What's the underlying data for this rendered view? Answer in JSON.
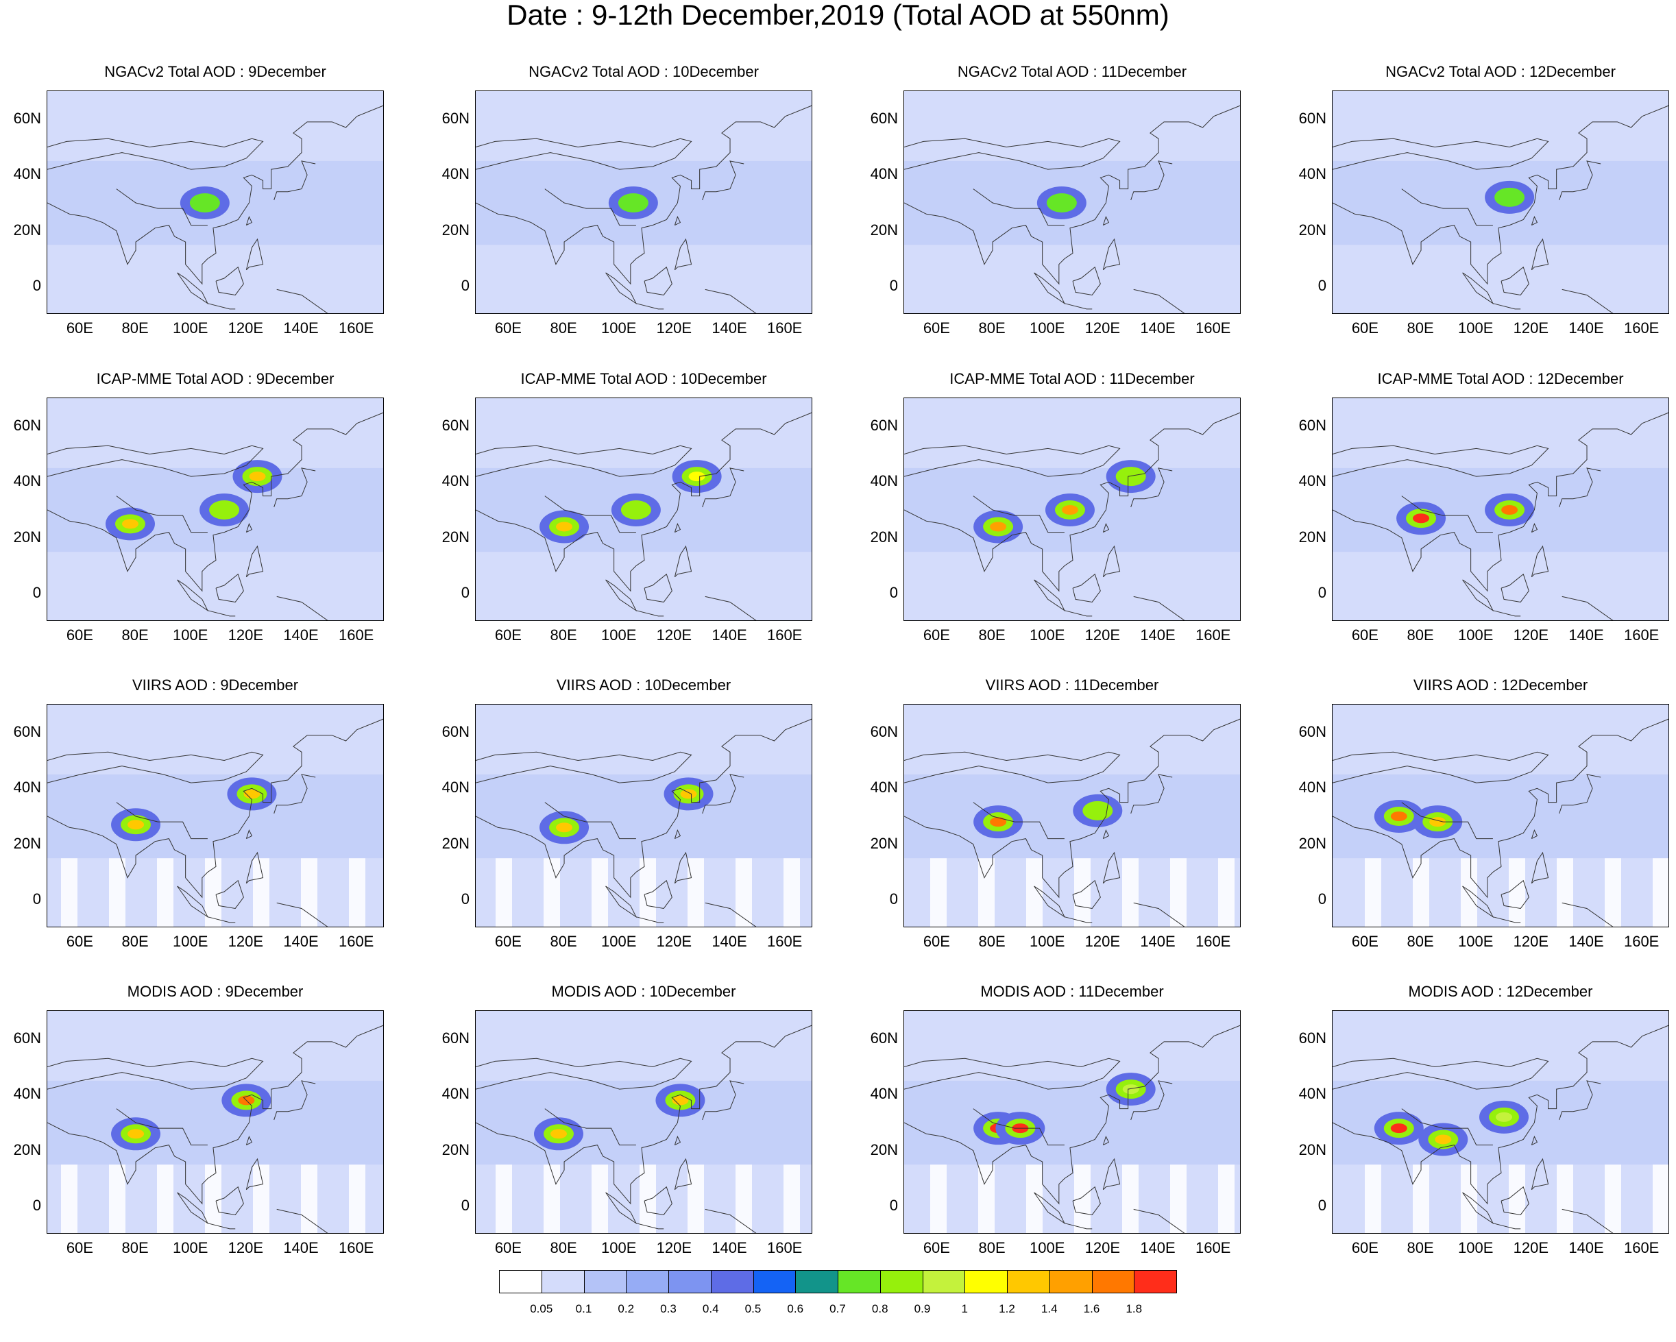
{
  "title": "Date : 9-12th December,2019 (Total AOD at 550nm)",
  "lat_ticks": [
    "60N",
    "40N",
    "20N",
    "0"
  ],
  "lon_ticks": [
    "60E",
    "80E",
    "100E",
    "120E",
    "140E",
    "160E"
  ],
  "rows": [
    {
      "product": "NGACv2 Total AOD",
      "panels": [
        "NGACv2 Total AOD : 9December",
        "NGACv2 Total AOD : 10December",
        "NGACv2 Total AOD : 11December",
        "NGACv2 Total AOD : 12December"
      ]
    },
    {
      "product": "ICAP-MME Total AOD",
      "panels": [
        "ICAP-MME Total AOD : 9December",
        "ICAP-MME Total AOD : 10December",
        "ICAP-MME Total AOD : 11December",
        "ICAP-MME Total AOD : 12December"
      ]
    },
    {
      "product": "VIIRS AOD",
      "panels": [
        "VIIRS AOD : 9December",
        "VIIRS AOD : 10December",
        "VIIRS AOD : 11December",
        "VIIRS AOD : 12December"
      ]
    },
    {
      "product": "MODIS AOD",
      "panels": [
        "MODIS AOD : 9December",
        "MODIS AOD : 10December",
        "MODIS AOD : 11December",
        "MODIS AOD : 12December"
      ]
    }
  ],
  "chart_data": {
    "type": "heatmap",
    "title": "Date : 9-12th December,2019 (Total AOD at 550nm)",
    "xlabel": "",
    "ylabel": "",
    "xlim": [
      48,
      170
    ],
    "ylim": [
      -10,
      70
    ],
    "x_ticks": [
      60,
      80,
      100,
      120,
      140,
      160
    ],
    "y_ticks": [
      0,
      20,
      40,
      60
    ],
    "grid": false,
    "dates": [
      "9December",
      "10December",
      "11December",
      "12December"
    ],
    "products": [
      "NGACv2 Total AOD",
      "ICAP-MME Total AOD",
      "VIIRS AOD",
      "MODIS AOD"
    ],
    "colorbar": {
      "levels": [
        "0.05",
        "0.1",
        "0.2",
        "0.3",
        "0.4",
        "0.5",
        "0.6",
        "0.7",
        "0.8",
        "0.9",
        "1",
        "1.2",
        "1.4",
        "1.6",
        "1.8"
      ],
      "colors": [
        "#ffffff",
        "#d4dcfb",
        "#b4c3f7",
        "#96acf5",
        "#7d94f1",
        "#5e6ce6",
        "#1463f5",
        "#12948a",
        "#66e626",
        "#96f00c",
        "#c4f23c",
        "#ffff00",
        "#ffc800",
        "#ffa000",
        "#ff7800",
        "#ff2d1a"
      ]
    },
    "hotspots": [
      [
        {
          "lon": 105,
          "lat": 30,
          "aod": 0.7
        }
      ],
      [
        {
          "lon": 105,
          "lat": 30,
          "aod": 0.7
        }
      ],
      [
        {
          "lon": 105,
          "lat": 30,
          "aod": 0.7
        }
      ],
      [
        {
          "lon": 112,
          "lat": 32,
          "aod": 0.7
        }
      ],
      [
        {
          "lon": 78,
          "lat": 25,
          "aod": 1.2
        },
        {
          "lon": 124,
          "lat": 42,
          "aod": 1.2
        },
        {
          "lon": 112,
          "lat": 30,
          "aod": 0.8
        }
      ],
      [
        {
          "lon": 80,
          "lat": 24,
          "aod": 1.2
        },
        {
          "lon": 128,
          "lat": 42,
          "aod": 1.0
        },
        {
          "lon": 106,
          "lat": 30,
          "aod": 0.8
        }
      ],
      [
        {
          "lon": 82,
          "lat": 24,
          "aod": 1.4
        },
        {
          "lon": 108,
          "lat": 30,
          "aod": 1.4
        },
        {
          "lon": 130,
          "lat": 42,
          "aod": 0.8
        }
      ],
      [
        {
          "lon": 80,
          "lat": 27,
          "aod": 1.8
        },
        {
          "lon": 112,
          "lat": 30,
          "aod": 1.6
        }
      ],
      [
        {
          "lon": 80,
          "lat": 27,
          "aod": 1.2
        },
        {
          "lon": 122,
          "lat": 38,
          "aod": 1.2
        }
      ],
      [
        {
          "lon": 80,
          "lat": 26,
          "aod": 1.2
        },
        {
          "lon": 125,
          "lat": 38,
          "aod": 1.2
        }
      ],
      [
        {
          "lon": 82,
          "lat": 28,
          "aod": 1.6
        },
        {
          "lon": 118,
          "lat": 32,
          "aod": 0.8
        }
      ],
      [
        {
          "lon": 72,
          "lat": 30,
          "aod": 1.6
        },
        {
          "lon": 86,
          "lat": 28,
          "aod": 1.2
        }
      ],
      [
        {
          "lon": 80,
          "lat": 26,
          "aod": 1.2
        },
        {
          "lon": 120,
          "lat": 38,
          "aod": 1.6
        }
      ],
      [
        {
          "lon": 78,
          "lat": 26,
          "aod": 1.2
        },
        {
          "lon": 122,
          "lat": 38,
          "aod": 1.2
        }
      ],
      [
        {
          "lon": 82,
          "lat": 28,
          "aod": 1.8
        },
        {
          "lon": 90,
          "lat": 28,
          "aod": 1.8
        },
        {
          "lon": 130,
          "lat": 42,
          "aod": 0.9
        }
      ],
      [
        {
          "lon": 72,
          "lat": 28,
          "aod": 1.8
        },
        {
          "lon": 88,
          "lat": 24,
          "aod": 1.2
        },
        {
          "lon": 110,
          "lat": 32,
          "aod": 0.9
        }
      ]
    ]
  }
}
